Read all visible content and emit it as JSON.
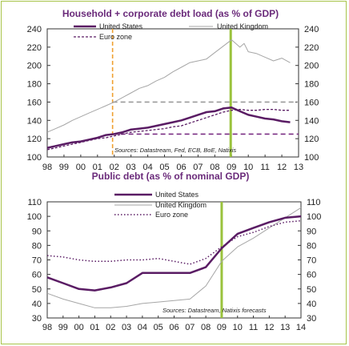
{
  "colors": {
    "us": "#5a1c64",
    "uk": "#a6a6a6",
    "euro": "#5a1c64",
    "green_line": "#9ac23c",
    "orange_dash": "#f0a030",
    "gray_dash": "#9a9a9a",
    "purple_dash": "#7a2e84",
    "frame": "#a8c44a",
    "title": "#6a2a7a"
  },
  "chart_data": [
    {
      "type": "line",
      "title": "Household + corporate debt load (as % of GDP)",
      "source": "Sources: Datastream, Fed, ECB, BoE, Natixis",
      "xlabel": "",
      "ylabel": "",
      "x_ticks": [
        "98",
        "99",
        "00",
        "01",
        "02",
        "03",
        "04",
        "05",
        "06",
        "07",
        "08",
        "09",
        "10",
        "11",
        "12",
        "13"
      ],
      "xlim": [
        1998,
        2013
      ],
      "ylim": [
        100,
        240
      ],
      "y_ticks": [
        100,
        120,
        140,
        160,
        180,
        200,
        220,
        240
      ],
      "legend": [
        "United States",
        "United Kingdom",
        "Euro zone"
      ],
      "grid": false,
      "series": [
        {
          "name": "United States",
          "style": "solid-thick",
          "x": [
            1998,
            1998.5,
            1999,
            1999.5,
            2000,
            2000.5,
            2001,
            2001.5,
            2002,
            2002.5,
            2003,
            2003.5,
            2004,
            2004.5,
            2005,
            2005.5,
            2006,
            2006.5,
            2007,
            2007.5,
            2008,
            2008.5,
            2009,
            2009.5,
            2010,
            2010.5,
            2011,
            2011.5,
            2012,
            2012.5
          ],
          "values": [
            110,
            112,
            114,
            116,
            117,
            119,
            121,
            124,
            125,
            127,
            130,
            131,
            132,
            134,
            136,
            138,
            140,
            143,
            146,
            149,
            150,
            153,
            154,
            150,
            146,
            144,
            142,
            141,
            139,
            138
          ]
        },
        {
          "name": "United Kingdom",
          "style": "solid-thin",
          "x": [
            1998,
            1998.5,
            1999,
            1999.5,
            2000,
            2000.5,
            2001,
            2001.5,
            2002,
            2002.5,
            2003,
            2003.5,
            2004,
            2004.5,
            2005,
            2005.5,
            2006,
            2006.5,
            2007,
            2007.5,
            2008,
            2008.5,
            2009,
            2009.25,
            2009.5,
            2009.75,
            2010,
            2010.5,
            2011,
            2011.5,
            2012,
            2012.5
          ],
          "values": [
            127,
            131,
            135,
            140,
            144,
            148,
            152,
            156,
            160,
            165,
            170,
            175,
            178,
            183,
            187,
            193,
            198,
            203,
            205,
            207,
            214,
            221,
            228,
            224,
            220,
            224,
            215,
            213,
            209,
            205,
            208,
            203
          ]
        },
        {
          "name": "Euro zone",
          "style": "dashed",
          "x": [
            1998,
            1998.5,
            1999,
            1999.5,
            2000,
            2000.5,
            2001,
            2001.5,
            2002,
            2002.5,
            2003,
            2003.5,
            2004,
            2004.5,
            2005,
            2005.5,
            2006,
            2006.5,
            2007,
            2007.5,
            2008,
            2008.5,
            2009,
            2009.5,
            2010,
            2010.5,
            2011,
            2011.5,
            2012,
            2012.5
          ],
          "values": [
            108,
            110,
            112,
            114,
            116,
            118,
            120,
            121,
            123,
            125,
            127,
            128,
            129,
            130,
            131,
            133,
            134,
            137,
            140,
            143,
            146,
            149,
            151,
            152,
            151,
            151,
            152,
            152,
            151,
            151
          ]
        }
      ],
      "reference_lines": [
        {
          "kind": "vertical",
          "x": 2001.9,
          "style": "orange-dashed"
        },
        {
          "kind": "vertical",
          "x": 2008.95,
          "style": "green-solid"
        },
        {
          "kind": "horizontal",
          "y": 160,
          "x_from": 2001.9,
          "x_to": 2013,
          "style": "gray-dashed"
        },
        {
          "kind": "horizontal",
          "y": 125,
          "x_from": 2001.9,
          "x_to": 2013,
          "style": "purple-dashed"
        }
      ]
    },
    {
      "type": "line",
      "title": "Public debt (as % of nominal GDP)",
      "source": "Sources: Datastream, Natixis forecasts",
      "xlabel": "",
      "ylabel": "",
      "x_ticks": [
        "98",
        "99",
        "00",
        "01",
        "02",
        "03",
        "04",
        "05",
        "06",
        "07",
        "08",
        "09",
        "10",
        "11",
        "12",
        "13",
        "14"
      ],
      "xlim": [
        1998,
        2014
      ],
      "ylim": [
        30,
        110
      ],
      "y_ticks": [
        30,
        40,
        50,
        60,
        70,
        80,
        90,
        100,
        110
      ],
      "legend": [
        "United States",
        "United Kingdom",
        "Euro zone"
      ],
      "grid": false,
      "series": [
        {
          "name": "United States",
          "style": "solid-thick",
          "x": [
            1998,
            1999,
            2000,
            2001,
            2002,
            2003,
            2004,
            2005,
            2006,
            2007,
            2008,
            2009,
            2010,
            2011,
            2012,
            2013,
            2014
          ],
          "values": [
            58,
            54,
            50,
            49,
            51,
            54,
            61,
            61,
            61,
            61,
            65,
            78,
            88,
            92,
            96,
            99,
            100
          ]
        },
        {
          "name": "United Kingdom",
          "style": "solid-thin",
          "x": [
            1998,
            1999,
            2000,
            2001,
            2002,
            2003,
            2004,
            2005,
            2006,
            2007,
            2008,
            2009,
            2010,
            2011,
            2012,
            2013,
            2014
          ],
          "values": [
            47,
            43,
            40,
            37,
            37,
            38,
            40,
            41,
            42,
            43,
            52,
            69,
            79,
            85,
            92,
            99,
            106
          ]
        },
        {
          "name": "Euro zone",
          "style": "dotted",
          "x": [
            1998,
            1999,
            2000,
            2001,
            2002,
            2003,
            2004,
            2005,
            2006,
            2007,
            2008,
            2009,
            2010,
            2011,
            2012,
            2013,
            2014
          ],
          "values": [
            73,
            72,
            70,
            69,
            69,
            70,
            70,
            71,
            69,
            67,
            71,
            79,
            86,
            89,
            93,
            96,
            97
          ]
        }
      ],
      "reference_lines": [
        {
          "kind": "vertical",
          "x": 2009,
          "style": "green-solid"
        }
      ]
    }
  ]
}
